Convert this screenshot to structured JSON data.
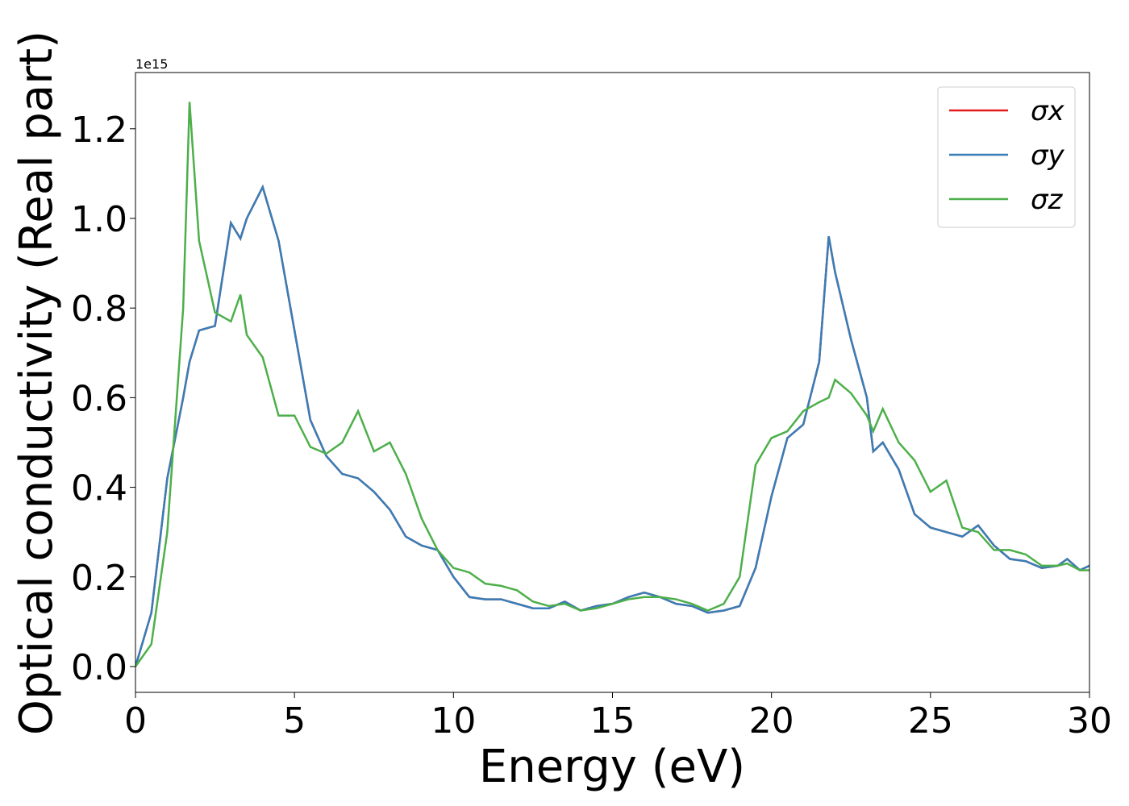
{
  "chart_data": {
    "type": "line",
    "x_label": "Energy (eV)",
    "y_label": "Optical conductivity (Real part)",
    "y_offset_text": "1e15",
    "x": [
      0,
      0.5,
      1,
      1.5,
      1.7,
      2,
      2.5,
      3,
      3.3,
      3.5,
      4,
      4.5,
      5,
      5.5,
      6,
      6.5,
      7,
      7.5,
      8,
      8.5,
      9,
      9.5,
      10,
      10.5,
      11,
      11.5,
      12,
      12.5,
      13,
      13.5,
      14,
      14.5,
      15,
      15.5,
      16,
      16.5,
      17,
      17.5,
      18,
      18.5,
      19,
      19.5,
      20,
      20.5,
      21,
      21.5,
      21.8,
      22,
      22.5,
      23,
      23.2,
      23.5,
      24,
      24.5,
      25,
      25.5,
      26,
      26.5,
      27,
      27.5,
      28,
      28.5,
      29,
      29.3,
      29.7,
      30
    ],
    "series": [
      {
        "name": "σx",
        "color": "#e41a1c",
        "values": [
          0,
          0.12,
          0.42,
          0.6,
          0.68,
          0.75,
          0.76,
          0.99,
          0.955,
          1.0,
          1.07,
          0.95,
          0.75,
          0.55,
          0.47,
          0.43,
          0.42,
          0.39,
          0.35,
          0.29,
          0.27,
          0.26,
          0.2,
          0.155,
          0.15,
          0.15,
          0.14,
          0.13,
          0.13,
          0.145,
          0.125,
          0.135,
          0.14,
          0.155,
          0.165,
          0.155,
          0.14,
          0.135,
          0.12,
          0.125,
          0.135,
          0.22,
          0.38,
          0.51,
          0.54,
          0.68,
          0.96,
          0.88,
          0.73,
          0.6,
          0.48,
          0.5,
          0.44,
          0.34,
          0.31,
          0.3,
          0.29,
          0.315,
          0.27,
          0.24,
          0.235,
          0.22,
          0.225,
          0.24,
          0.215,
          0.225
        ]
      },
      {
        "name": "σy",
        "color": "#377eb8",
        "values": [
          0,
          0.12,
          0.42,
          0.6,
          0.68,
          0.75,
          0.76,
          0.99,
          0.955,
          1.0,
          1.07,
          0.95,
          0.75,
          0.55,
          0.47,
          0.43,
          0.42,
          0.39,
          0.35,
          0.29,
          0.27,
          0.26,
          0.2,
          0.155,
          0.15,
          0.15,
          0.14,
          0.13,
          0.13,
          0.145,
          0.125,
          0.135,
          0.14,
          0.155,
          0.165,
          0.155,
          0.14,
          0.135,
          0.12,
          0.125,
          0.135,
          0.22,
          0.38,
          0.51,
          0.54,
          0.68,
          0.96,
          0.88,
          0.73,
          0.6,
          0.48,
          0.5,
          0.44,
          0.34,
          0.31,
          0.3,
          0.29,
          0.315,
          0.27,
          0.24,
          0.235,
          0.22,
          0.225,
          0.24,
          0.215,
          0.225
        ]
      },
      {
        "name": "σz",
        "color": "#4daf4a",
        "values": [
          0,
          0.05,
          0.3,
          0.8,
          1.26,
          0.95,
          0.79,
          0.77,
          0.83,
          0.74,
          0.69,
          0.56,
          0.56,
          0.49,
          0.475,
          0.5,
          0.57,
          0.48,
          0.5,
          0.43,
          0.33,
          0.26,
          0.22,
          0.21,
          0.185,
          0.18,
          0.17,
          0.145,
          0.135,
          0.14,
          0.125,
          0.13,
          0.14,
          0.15,
          0.155,
          0.155,
          0.15,
          0.14,
          0.125,
          0.14,
          0.2,
          0.45,
          0.51,
          0.525,
          0.57,
          0.59,
          0.6,
          0.64,
          0.61,
          0.56,
          0.525,
          0.575,
          0.5,
          0.46,
          0.39,
          0.415,
          0.31,
          0.3,
          0.26,
          0.26,
          0.25,
          0.225,
          0.225,
          0.23,
          0.215,
          0.215
        ]
      }
    ],
    "xlim": [
      0,
      30
    ],
    "xticks": [
      0,
      5,
      10,
      15,
      20,
      25,
      30
    ],
    "ylim": [
      -0.0576,
      1.3255
    ],
    "yticks": [
      {
        "value": 0,
        "label": "0.0"
      },
      0.2,
      0.4,
      0.6,
      0.8,
      {
        "value": 1,
        "label": "1.0"
      },
      1.2
    ],
    "legend": "upper right",
    "grid": false
  }
}
